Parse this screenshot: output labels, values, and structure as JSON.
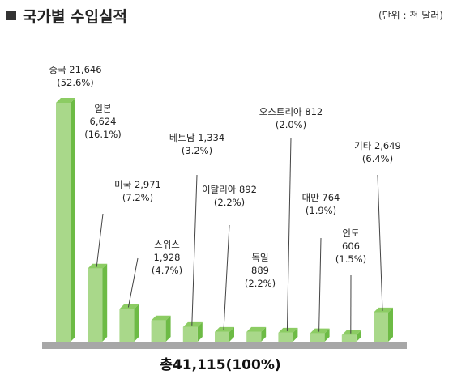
{
  "header": {
    "title": "국가별 수입실적",
    "unit": "(단위 : 천 달러)"
  },
  "colors": {
    "bar_front": "#a9d88a",
    "bar_side": "#6dbb45",
    "bar_top": "#8ccc63",
    "baseline": "#a7a7a7",
    "leader": "#444444"
  },
  "chart_data": {
    "type": "bar",
    "title": "",
    "xlabel": "",
    "ylabel": "",
    "ylim": [
      0,
      21646
    ],
    "grid": false,
    "bars": [
      {
        "lines": [
          "중국 21,646",
          "(52.6%)"
        ],
        "value": 21646
      },
      {
        "lines": [
          "일본",
          "6,624",
          "(16.1%)"
        ],
        "value": 6624
      },
      {
        "lines": [
          "미국 2,971",
          "(7.2%)"
        ],
        "value": 2971
      },
      {
        "lines": [
          "스위스",
          "1,928",
          "(4.7%)"
        ],
        "value": 1928
      },
      {
        "lines": [
          "베트남 1,334",
          "(3.2%)"
        ],
        "value": 1334
      },
      {
        "lines": [
          "이탈리아  892",
          "(2.2%)"
        ],
        "value": 892
      },
      {
        "lines": [
          "독일",
          "889",
          "(2.2%)"
        ],
        "value": 889
      },
      {
        "lines": [
          "오스트리아 812",
          "(2.0%)"
        ],
        "value": 812
      },
      {
        "lines": [
          "대만 764",
          "(1.9%)"
        ],
        "value": 764
      },
      {
        "lines": [
          "인도",
          "606",
          "(1.5%)"
        ],
        "value": 606
      },
      {
        "lines": [
          "기타 2,649",
          "(6.4%)"
        ],
        "value": 2649
      }
    ],
    "total_label": "총41,115(100%)"
  }
}
